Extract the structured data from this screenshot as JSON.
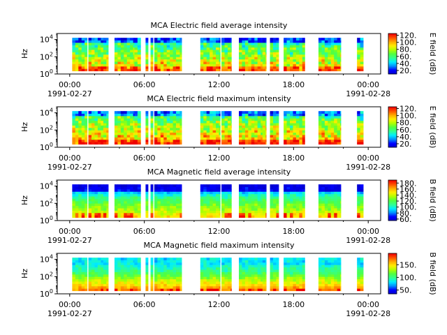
{
  "chart_data": [
    {
      "type": "heatmap",
      "title": "MCA  Electric field average intensity",
      "ylabel": "Hz",
      "ylim_log10": [
        0,
        4.7
      ],
      "yticks": [
        {
          "exp": "0"
        },
        {
          "exp": "2"
        },
        {
          "exp": "4"
        }
      ],
      "x_range_hours": [
        -1,
        25
      ],
      "xticks": [
        {
          "t": 0,
          "time": "00:00",
          "date": "1991-02-27"
        },
        {
          "t": 6,
          "time": "06:00",
          "date": ""
        },
        {
          "t": 12,
          "time": "12:00",
          "date": ""
        },
        {
          "t": 18,
          "time": "18:00",
          "date": ""
        },
        {
          "t": 24,
          "time": "00:00",
          "date": "1991-02-28"
        }
      ],
      "colorbar": {
        "label": "E field (dB)",
        "range": [
          10,
          125
        ],
        "ticks": [
          "20.",
          "40.",
          "60.",
          "80.",
          "100.",
          "120."
        ],
        "tick_values": [
          20,
          40,
          60,
          80,
          100,
          120
        ]
      },
      "style": "e-avg",
      "data_segments_hours": [
        [
          0.2,
          1.4
        ],
        [
          1.5,
          2.7
        ],
        [
          2.7,
          3.1
        ],
        [
          3.6,
          5.2
        ],
        [
          5.2,
          5.7
        ],
        [
          6.1,
          6.3
        ],
        [
          6.5,
          6.7
        ],
        [
          6.8,
          8.6
        ],
        [
          8.6,
          9.0
        ],
        [
          10.5,
          12.1
        ],
        [
          12.2,
          13.0
        ],
        [
          13.6,
          15.5
        ],
        [
          15.5,
          15.8
        ],
        [
          16.1,
          16.8
        ],
        [
          17.2,
          18.9
        ],
        [
          20.0,
          21.8
        ],
        [
          23.1,
          23.6
        ]
      ],
      "colormap": [
        "#0000d0",
        "#0000ff",
        "#0090ff",
        "#00eeff",
        "#30ff90",
        "#50ff40",
        "#b0ff00",
        "#ffee00",
        "#ffaa00",
        "#ff5000",
        "#ee0000"
      ]
    },
    {
      "type": "heatmap",
      "title": "MCA  Electric field maximum intensity",
      "ylabel": "Hz",
      "ylim_log10": [
        0,
        4.7
      ],
      "yticks": [
        {
          "exp": "0"
        },
        {
          "exp": "2"
        },
        {
          "exp": "4"
        }
      ],
      "x_range_hours": [
        -1,
        25
      ],
      "xticks": [
        {
          "t": 0,
          "time": "00:00",
          "date": "1991-02-27"
        },
        {
          "t": 6,
          "time": "06:00",
          "date": ""
        },
        {
          "t": 12,
          "time": "12:00",
          "date": ""
        },
        {
          "t": 18,
          "time": "18:00",
          "date": ""
        },
        {
          "t": 24,
          "time": "00:00",
          "date": "1991-02-28"
        }
      ],
      "colorbar": {
        "label": "E field (dB)",
        "range": [
          10,
          125
        ],
        "ticks": [
          "20.",
          "40.",
          "60.",
          "80.",
          "100.",
          "120."
        ],
        "tick_values": [
          20,
          40,
          60,
          80,
          100,
          120
        ]
      },
      "style": "e-max",
      "data_segments_hours": [
        [
          0.2,
          1.4
        ],
        [
          1.5,
          2.7
        ],
        [
          2.7,
          3.1
        ],
        [
          3.6,
          5.2
        ],
        [
          5.2,
          5.7
        ],
        [
          6.1,
          6.3
        ],
        [
          6.5,
          6.7
        ],
        [
          6.8,
          8.6
        ],
        [
          8.6,
          9.0
        ],
        [
          10.5,
          12.1
        ],
        [
          12.2,
          13.0
        ],
        [
          13.6,
          15.5
        ],
        [
          15.5,
          15.8
        ],
        [
          16.1,
          16.8
        ],
        [
          17.2,
          18.9
        ],
        [
          20.0,
          21.8
        ],
        [
          23.1,
          23.6
        ]
      ],
      "colormap": [
        "#0000d0",
        "#0000ff",
        "#0090ff",
        "#00eeff",
        "#30ff90",
        "#50ff40",
        "#b0ff00",
        "#ffee00",
        "#ffaa00",
        "#ff5000",
        "#ee0000"
      ]
    },
    {
      "type": "heatmap",
      "title": "MCA  Magnetic field average intensity",
      "ylabel": "Hz",
      "ylim_log10": [
        0,
        4.7
      ],
      "yticks": [
        {
          "exp": "0"
        },
        {
          "exp": "2"
        },
        {
          "exp": "4"
        }
      ],
      "x_range_hours": [
        -1,
        25
      ],
      "xticks": [
        {
          "t": 0,
          "time": "00:00",
          "date": "1991-02-27"
        },
        {
          "t": 6,
          "time": "06:00",
          "date": ""
        },
        {
          "t": 12,
          "time": "12:00",
          "date": ""
        },
        {
          "t": 18,
          "time": "18:00",
          "date": ""
        },
        {
          "t": 24,
          "time": "00:00",
          "date": "1991-02-28"
        }
      ],
      "colorbar": {
        "label": "B field (dB)",
        "range": [
          55,
          190
        ],
        "ticks": [
          "60.",
          "80.",
          "100.",
          "120.",
          "140.",
          "160.",
          "180."
        ],
        "tick_values": [
          60,
          80,
          100,
          120,
          140,
          160,
          180
        ]
      },
      "style": "b-avg",
      "data_segments_hours": [
        [
          0.2,
          1.4
        ],
        [
          1.5,
          2.7
        ],
        [
          2.7,
          3.1
        ],
        [
          3.6,
          5.2
        ],
        [
          5.2,
          5.7
        ],
        [
          6.1,
          6.3
        ],
        [
          6.5,
          6.7
        ],
        [
          6.8,
          8.6
        ],
        [
          8.6,
          9.0
        ],
        [
          10.5,
          12.1
        ],
        [
          12.2,
          13.0
        ],
        [
          13.6,
          15.5
        ],
        [
          15.5,
          15.8
        ],
        [
          16.1,
          16.8
        ],
        [
          17.2,
          18.9
        ],
        [
          20.0,
          21.8
        ],
        [
          23.1,
          23.6
        ]
      ],
      "colormap": [
        "#0000d0",
        "#0000ff",
        "#0090ff",
        "#00eeff",
        "#30ff90",
        "#50ff40",
        "#b0ff00",
        "#ffee00",
        "#ffaa00",
        "#ff5000",
        "#ee0000"
      ]
    },
    {
      "type": "heatmap",
      "title": "MCA  Magnetic field maximum intensity",
      "ylabel": "Hz",
      "ylim_log10": [
        0,
        4.7
      ],
      "yticks": [
        {
          "exp": "0"
        },
        {
          "exp": "2"
        },
        {
          "exp": "4"
        }
      ],
      "x_range_hours": [
        -1,
        25
      ],
      "xticks": [
        {
          "t": 0,
          "time": "00:00",
          "date": "1991-02-27"
        },
        {
          "t": 6,
          "time": "06:00",
          "date": ""
        },
        {
          "t": 12,
          "time": "12:00",
          "date": ""
        },
        {
          "t": 18,
          "time": "18:00",
          "date": ""
        },
        {
          "t": 24,
          "time": "00:00",
          "date": "1991-02-28"
        }
      ],
      "colorbar": {
        "label": "B field (dB)",
        "range": [
          35,
          195
        ],
        "ticks": [
          "50.",
          "100.",
          "150."
        ],
        "tick_values": [
          50,
          100,
          150
        ]
      },
      "style": "b-max",
      "data_segments_hours": [
        [
          0.2,
          1.4
        ],
        [
          1.5,
          2.7
        ],
        [
          2.7,
          3.1
        ],
        [
          3.6,
          5.2
        ],
        [
          5.2,
          5.7
        ],
        [
          6.1,
          6.3
        ],
        [
          6.5,
          6.7
        ],
        [
          6.8,
          8.6
        ],
        [
          8.6,
          9.0
        ],
        [
          10.5,
          12.1
        ],
        [
          12.2,
          13.0
        ],
        [
          13.6,
          15.5
        ],
        [
          15.5,
          15.8
        ],
        [
          16.1,
          16.8
        ],
        [
          17.2,
          18.9
        ],
        [
          20.0,
          21.8
        ],
        [
          23.1,
          23.6
        ]
      ],
      "colormap": [
        "#0000d0",
        "#0000ff",
        "#0090ff",
        "#00eeff",
        "#30ff90",
        "#50ff40",
        "#b0ff00",
        "#ffee00",
        "#ffaa00",
        "#ff5000",
        "#ee0000"
      ]
    }
  ]
}
